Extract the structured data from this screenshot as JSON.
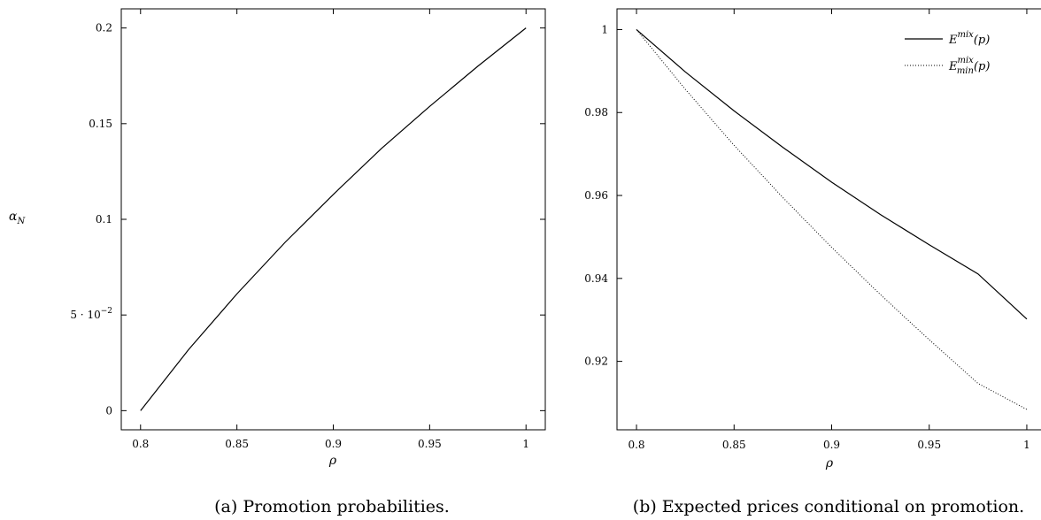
{
  "chart_data": [
    {
      "type": "line",
      "ylabel": "α_N",
      "xlabel": "ρ",
      "xlim": [
        0.79,
        1.01
      ],
      "ylim": [
        -0.01,
        0.21
      ],
      "x_ticks": [
        0.8,
        0.85,
        0.9,
        0.95,
        1
      ],
      "x_tick_labels": [
        "0.8",
        "0.85",
        "0.9",
        "0.95",
        "1"
      ],
      "y_ticks": [
        0,
        0.05,
        0.1,
        0.15,
        0.2
      ],
      "y_tick_labels": [
        "0",
        "5 · 10",
        "0.1",
        "0.15",
        "0.2"
      ],
      "y_tick_exponent": "−2",
      "grid": false,
      "caption": "(a) Promotion probabilities.",
      "series": [
        {
          "style": "solid",
          "x": [
            0.8,
            0.825,
            0.85,
            0.875,
            0.9,
            0.925,
            0.95,
            0.975,
            1.0
          ],
          "y": [
            0.0,
            0.032,
            0.061,
            0.088,
            0.113,
            0.137,
            0.159,
            0.18,
            0.2
          ]
        }
      ]
    },
    {
      "type": "line",
      "xlabel": "ρ",
      "ylabel": "",
      "xlim": [
        0.79,
        1.01
      ],
      "ylim": [
        0.9035,
        1.005
      ],
      "x_ticks": [
        0.8,
        0.85,
        0.9,
        0.95,
        1
      ],
      "x_tick_labels": [
        "0.8",
        "0.85",
        "0.9",
        "0.95",
        "1"
      ],
      "y_ticks": [
        0.92,
        0.94,
        0.96,
        0.98,
        1
      ],
      "y_tick_labels": [
        "0.92",
        "0.94",
        "0.96",
        "0.98",
        "1"
      ],
      "grid": false,
      "legend_position": "top-right",
      "caption": "(b) Expected prices conditional on promotion.",
      "series": [
        {
          "legend": {
            "base": "E",
            "sup": "mix",
            "sub": "",
            "arg": "(p)"
          },
          "style": "solid",
          "x": [
            0.8,
            0.825,
            0.85,
            0.875,
            0.9,
            0.925,
            0.95,
            0.975,
            1.0
          ],
          "y": [
            1.0,
            0.9898,
            0.9804,
            0.9716,
            0.9632,
            0.9554,
            0.9481,
            0.9411,
            0.9302
          ]
        },
        {
          "legend": {
            "base": "E",
            "sup": "mix",
            "sub": "min",
            "arg": "(p)"
          },
          "style": "dotted",
          "x": [
            0.8,
            0.825,
            0.85,
            0.875,
            0.9,
            0.925,
            0.95,
            0.975,
            1.0
          ],
          "y": [
            1.0,
            0.9856,
            0.9721,
            0.9595,
            0.9475,
            0.9361,
            0.9252,
            0.9147,
            0.9084
          ]
        }
      ]
    }
  ]
}
